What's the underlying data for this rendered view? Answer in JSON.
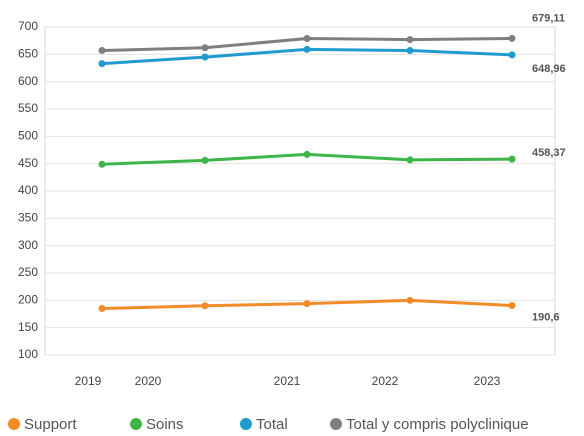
{
  "chart_data": {
    "type": "line",
    "categories": [
      "2019",
      "2020",
      "2021",
      "2022",
      "2023"
    ],
    "series": [
      {
        "name": "Support",
        "color": "#f28c28",
        "values": [
          185,
          190,
          194,
          200,
          190.6
        ],
        "value_labels": [
          null,
          null,
          null,
          null,
          "190,6"
        ]
      },
      {
        "name": "Soins",
        "color": "#3db54a",
        "values": [
          449,
          456,
          467,
          457,
          458.37
        ],
        "value_labels": [
          null,
          null,
          null,
          null,
          "458,37"
        ]
      },
      {
        "name": "Total",
        "color": "#1f9bcf",
        "values": [
          633,
          645,
          659,
          657,
          648.96
        ],
        "value_labels": [
          null,
          null,
          null,
          null,
          "648,96"
        ]
      },
      {
        "name": "Total y compris polyclinique",
        "color": "#7f7f7f",
        "values": [
          657,
          662,
          679,
          677,
          679.11
        ],
        "value_labels": [
          null,
          null,
          null,
          null,
          "679,11"
        ]
      }
    ],
    "ylim": [
      100,
      700
    ],
    "yticks": [
      100,
      150,
      200,
      250,
      300,
      350,
      400,
      450,
      500,
      550,
      600,
      650,
      700
    ],
    "grid": true,
    "legend": "bottom"
  }
}
